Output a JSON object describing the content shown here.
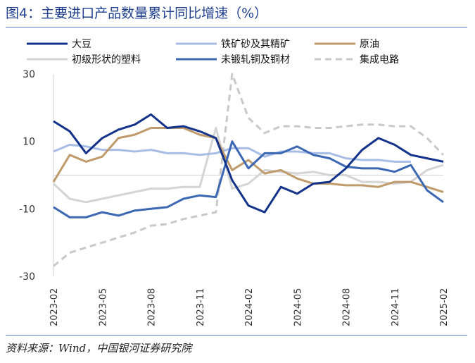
{
  "page": {
    "title": "图4：主要进口产品数量累计同比增速（%）",
    "source": "资料来源：Wind，中国银河证券研究院"
  },
  "chart_data": {
    "type": "line",
    "title": "图4：主要进口产品数量累计同比增速（%）",
    "xlabel": "",
    "ylabel": "",
    "ylim": [
      -30,
      30
    ],
    "yticks": [
      30,
      10,
      -10,
      -30
    ],
    "x": [
      "2023-02",
      "2023-03",
      "2023-04",
      "2023-05",
      "2023-06",
      "2023-07",
      "2023-08",
      "2023-09",
      "2023-10",
      "2023-11",
      "2023-12",
      "2024-01",
      "2024-02",
      "2024-03",
      "2024-04",
      "2024-05",
      "2024-06",
      "2024-07",
      "2024-08",
      "2024-09",
      "2024-10",
      "2024-11",
      "2024-12",
      "2025-01",
      "2025-02"
    ],
    "xtick_labels": [
      "2023-02",
      "2023-05",
      "2023-08",
      "2023-11",
      "2024-02",
      "2024-05",
      "2024-08",
      "2024-11",
      "2025-02"
    ],
    "legend": [
      "大豆",
      "铁矿砂及其精矿",
      "原油",
      "初级形状的塑料",
      "未锻轧铜及铜材",
      "集成电路"
    ],
    "series": [
      {
        "name": "大豆",
        "color": "#13328a",
        "dash": false,
        "values": [
          16,
          13,
          6.5,
          11,
          13.5,
          15,
          18,
          14,
          14.5,
          13,
          11,
          -1.5,
          -9,
          -11,
          -3.5,
          -5.5,
          -2.5,
          -2,
          2,
          7.5,
          11,
          9,
          6,
          5,
          4
        ]
      },
      {
        "name": "铁矿砂及其精矿",
        "color": "#a8bde6",
        "dash": false,
        "values": [
          7,
          9,
          8.5,
          7.5,
          7.5,
          7,
          7.5,
          6.5,
          6.5,
          6,
          6.5,
          8,
          8,
          5.5,
          7,
          7,
          6.5,
          6.5,
          5,
          4.5,
          4.5,
          4,
          4,
          null,
          null
        ]
      },
      {
        "name": "原油",
        "color": "#bf9a6a",
        "dash": false,
        "values": [
          -2,
          6,
          4,
          5.5,
          11,
          12,
          14,
          14,
          14,
          12,
          11,
          1.5,
          4.5,
          0.5,
          1.5,
          -1,
          -2.5,
          -2.5,
          -3,
          -3,
          -3.5,
          -2,
          -2,
          -3.5,
          -5
        ]
      },
      {
        "name": "初级形状的塑料",
        "color": "#d4d4d4",
        "dash": false,
        "values": [
          -2.5,
          -7,
          -8,
          -7,
          -6,
          -5,
          -4,
          -4,
          -3.5,
          -3.5,
          14,
          -4,
          -2.5,
          1.5,
          1,
          0.5,
          1,
          0,
          0,
          -2,
          -2,
          -2.5,
          -2,
          1.5,
          3
        ]
      },
      {
        "name": "未锻轧铜及铜材",
        "color": "#3b67b3",
        "dash": false,
        "values": [
          -9.5,
          -12.5,
          -12.5,
          -11,
          -12,
          -10.5,
          -10,
          -9.5,
          -7,
          -6,
          -6.5,
          10,
          2,
          6.5,
          6.5,
          8.5,
          6,
          5,
          2.5,
          2,
          2,
          1,
          3,
          -4.5,
          -8
        ]
      },
      {
        "name": "集成电路",
        "color": "#c9c9c9",
        "dash": true,
        "values": [
          -27,
          -23,
          -21.5,
          -20,
          -18.5,
          -17,
          -15,
          -14.5,
          -13,
          -12,
          -11,
          30,
          17,
          12.5,
          14.5,
          14.5,
          14,
          14,
          14.5,
          15,
          15,
          14.5,
          14.5,
          11,
          6
        ]
      }
    ]
  }
}
